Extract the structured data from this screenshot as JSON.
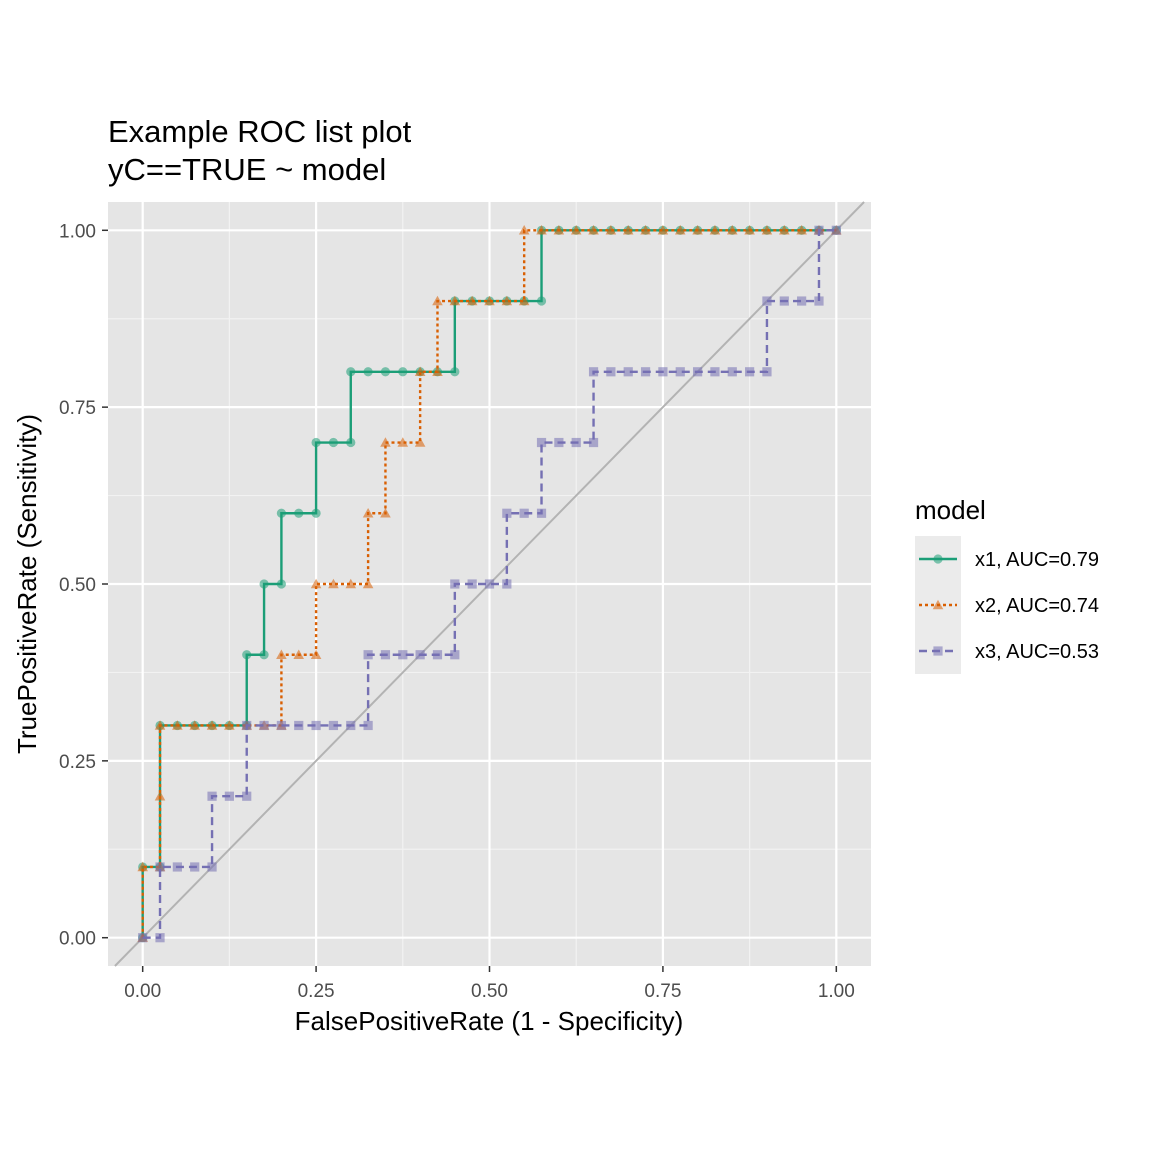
{
  "chart_data": {
    "type": "line",
    "title": "Example ROC list plot",
    "subtitle": "yC==TRUE ~ model",
    "xlabel": "FalsePositiveRate (1 - Specificity)",
    "ylabel": "TruePositiveRate (Sensitivity)",
    "xlim": [
      -0.05,
      1.05
    ],
    "ylim": [
      -0.04,
      1.04
    ],
    "x_ticks": [
      0,
      0.25,
      0.5,
      0.75,
      1
    ],
    "x_tick_labels": [
      "0.00",
      "0.25",
      "0.50",
      "0.75",
      "1.00"
    ],
    "y_ticks": [
      0,
      0.25,
      0.5,
      0.75,
      1
    ],
    "y_tick_labels": [
      "0.00",
      "0.25",
      "0.50",
      "0.75",
      "1.00"
    ],
    "grid": true,
    "panel_background": "#e5e5e5",
    "diagonal_reference": true,
    "legend": {
      "title": "model",
      "position": "right"
    },
    "series": [
      {
        "name": "x1, AUC=0.79",
        "color": "#1b9e77",
        "linestyle": "solid",
        "marker": "circle",
        "x": [
          0,
          0,
          0.025,
          0.025,
          0.05,
          0.075,
          0.1,
          0.125,
          0.15,
          0.15,
          0.175,
          0.175,
          0.2,
          0.2,
          0.225,
          0.25,
          0.25,
          0.275,
          0.3,
          0.3,
          0.325,
          0.35,
          0.375,
          0.4,
          0.425,
          0.45,
          0.45,
          0.475,
          0.5,
          0.525,
          0.55,
          0.575,
          0.575,
          0.6,
          0.625,
          0.65,
          0.675,
          0.7,
          0.725,
          0.75,
          0.775,
          0.8,
          0.825,
          0.85,
          0.875,
          0.9,
          0.925,
          0.95,
          0.975,
          1
        ],
        "y": [
          0,
          0.1,
          0.1,
          0.3,
          0.3,
          0.3,
          0.3,
          0.3,
          0.3,
          0.4,
          0.4,
          0.5,
          0.5,
          0.6,
          0.6,
          0.6,
          0.7,
          0.7,
          0.7,
          0.8,
          0.8,
          0.8,
          0.8,
          0.8,
          0.8,
          0.8,
          0.9,
          0.9,
          0.9,
          0.9,
          0.9,
          0.9,
          1,
          1,
          1,
          1,
          1,
          1,
          1,
          1,
          1,
          1,
          1,
          1,
          1,
          1,
          1,
          1,
          1,
          1
        ]
      },
      {
        "name": "x2, AUC=0.74",
        "color": "#d95f02",
        "linestyle": "dotted",
        "marker": "triangle",
        "x": [
          0,
          0,
          0.025,
          0.025,
          0.025,
          0.05,
          0.075,
          0.1,
          0.125,
          0.15,
          0.175,
          0.2,
          0.2,
          0.225,
          0.25,
          0.25,
          0.275,
          0.3,
          0.325,
          0.325,
          0.35,
          0.35,
          0.375,
          0.4,
          0.4,
          0.425,
          0.425,
          0.45,
          0.475,
          0.5,
          0.525,
          0.55,
          0.55,
          0.575,
          0.6,
          0.625,
          0.65,
          0.675,
          0.7,
          0.725,
          0.75,
          0.775,
          0.8,
          0.825,
          0.85,
          0.875,
          0.9,
          0.925,
          0.95,
          0.975,
          1
        ],
        "y": [
          0,
          0.1,
          0.1,
          0.2,
          0.3,
          0.3,
          0.3,
          0.3,
          0.3,
          0.3,
          0.3,
          0.3,
          0.4,
          0.4,
          0.4,
          0.5,
          0.5,
          0.5,
          0.5,
          0.6,
          0.6,
          0.7,
          0.7,
          0.7,
          0.8,
          0.8,
          0.9,
          0.9,
          0.9,
          0.9,
          0.9,
          0.9,
          1,
          1,
          1,
          1,
          1,
          1,
          1,
          1,
          1,
          1,
          1,
          1,
          1,
          1,
          1,
          1,
          1,
          1,
          1
        ]
      },
      {
        "name": "x3, AUC=0.53",
        "color": "#7570b3",
        "linestyle": "dashed",
        "marker": "square",
        "x": [
          0,
          0.025,
          0.025,
          0.05,
          0.075,
          0.1,
          0.1,
          0.125,
          0.15,
          0.15,
          0.175,
          0.2,
          0.225,
          0.25,
          0.275,
          0.3,
          0.325,
          0.325,
          0.35,
          0.375,
          0.4,
          0.425,
          0.45,
          0.45,
          0.475,
          0.5,
          0.525,
          0.525,
          0.55,
          0.575,
          0.575,
          0.6,
          0.625,
          0.65,
          0.65,
          0.675,
          0.7,
          0.725,
          0.75,
          0.775,
          0.8,
          0.825,
          0.85,
          0.875,
          0.9,
          0.9,
          0.925,
          0.95,
          0.975,
          0.975,
          1
        ],
        "y": [
          0,
          0,
          0.1,
          0.1,
          0.1,
          0.1,
          0.2,
          0.2,
          0.2,
          0.3,
          0.3,
          0.3,
          0.3,
          0.3,
          0.3,
          0.3,
          0.3,
          0.4,
          0.4,
          0.4,
          0.4,
          0.4,
          0.4,
          0.5,
          0.5,
          0.5,
          0.5,
          0.6,
          0.6,
          0.6,
          0.7,
          0.7,
          0.7,
          0.7,
          0.8,
          0.8,
          0.8,
          0.8,
          0.8,
          0.8,
          0.8,
          0.8,
          0.8,
          0.8,
          0.8,
          0.9,
          0.9,
          0.9,
          0.9,
          1,
          1
        ]
      }
    ]
  }
}
